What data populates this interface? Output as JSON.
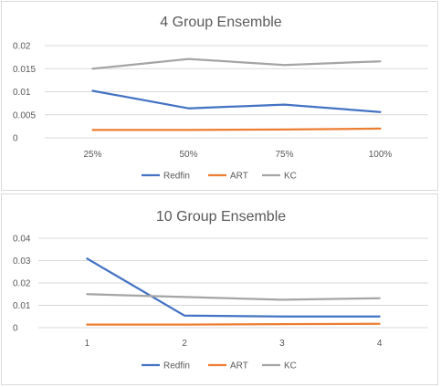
{
  "chart_data": [
    {
      "type": "line",
      "title": "4 Group Ensemble",
      "categories": [
        "25%",
        "50%",
        "75%",
        "100%"
      ],
      "yticks": [
        "0",
        "0.005",
        "0.01",
        "0.015",
        "0.02"
      ],
      "ylim": [
        0,
        0.02
      ],
      "grid": true,
      "legend_position": "bottom",
      "series": [
        {
          "name": "Redfin",
          "color": "#4472C4",
          "values": [
            0.0102,
            0.0064,
            0.0072,
            0.0056
          ]
        },
        {
          "name": "ART",
          "color": "#ED7D31",
          "values": [
            0.0017,
            0.0017,
            0.0018,
            0.002
          ]
        },
        {
          "name": "KC",
          "color": "#A5A5A5",
          "values": [
            0.015,
            0.0171,
            0.0158,
            0.0166
          ]
        }
      ]
    },
    {
      "type": "line",
      "title": "10 Group Ensemble",
      "categories": [
        "1",
        "2",
        "3",
        "4"
      ],
      "yticks": [
        "0",
        "0.01",
        "0.02",
        "0.03",
        "0.04"
      ],
      "ylim": [
        0,
        0.04
      ],
      "grid": true,
      "legend_position": "bottom",
      "series": [
        {
          "name": "Redfin",
          "color": "#4472C4",
          "values": [
            0.0309,
            0.0054,
            0.005,
            0.005
          ]
        },
        {
          "name": "ART",
          "color": "#ED7D31",
          "values": [
            0.0014,
            0.0014,
            0.0016,
            0.0017
          ]
        },
        {
          "name": "KC",
          "color": "#A5A5A5",
          "values": [
            0.015,
            0.0137,
            0.0125,
            0.0132
          ]
        }
      ]
    }
  ]
}
